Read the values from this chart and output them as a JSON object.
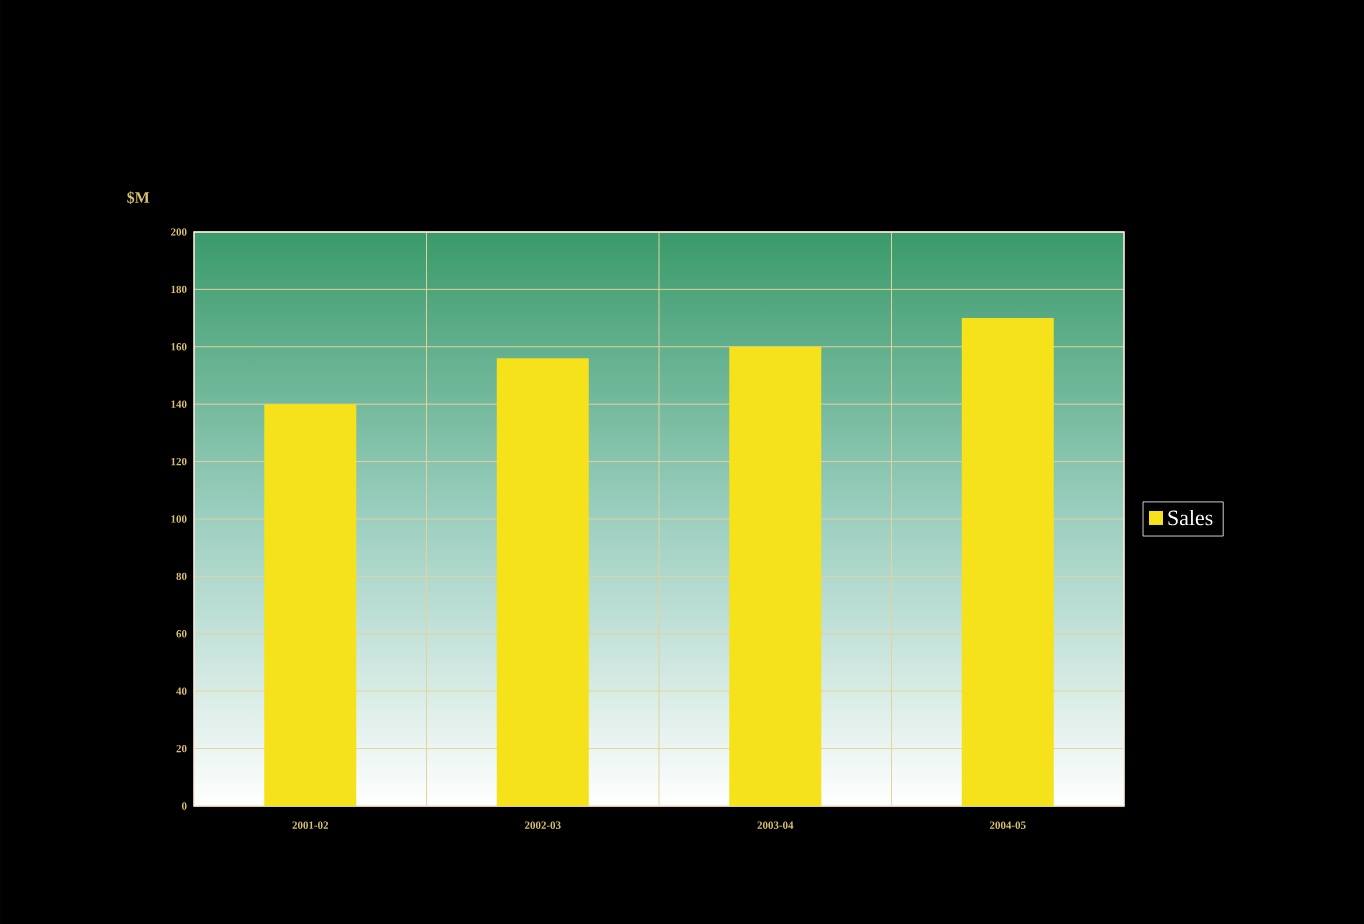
{
  "chart_data": {
    "type": "bar",
    "ylabel": "$M",
    "categories": [
      "2001-02",
      "2002-03",
      "2003-04",
      "2004-05"
    ],
    "series": [
      {
        "name": "Sales",
        "color": "#f5e21a",
        "values": [
          140,
          156,
          160,
          170
        ]
      }
    ],
    "ylim": [
      0,
      200
    ],
    "yticks": [
      0,
      20,
      40,
      60,
      80,
      100,
      120,
      140,
      160,
      180,
      200
    ],
    "grid": true,
    "legend": "right"
  }
}
